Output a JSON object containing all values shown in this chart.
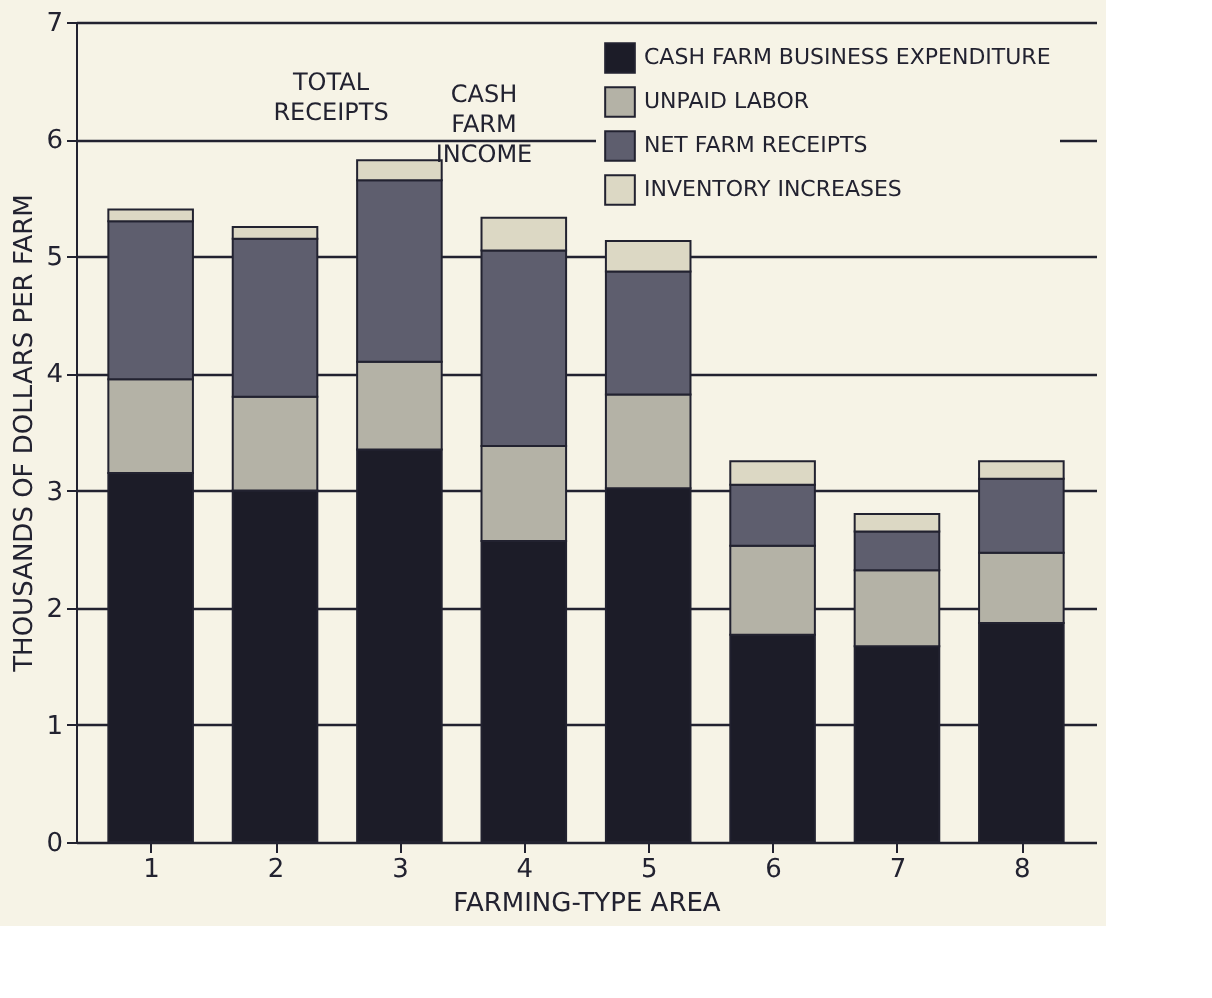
{
  "chart_data": {
    "type": "bar",
    "stacked": true,
    "xlabel": "FARMING-TYPE AREA",
    "ylabel": "THOUSANDS OF DOLLARS PER FARM",
    "categories": [
      "1",
      "2",
      "3",
      "4",
      "5",
      "6",
      "7",
      "8"
    ],
    "series": [
      {
        "name": "CASH FARM BUSINESS EXPENDITURE",
        "color": "#1c1c28",
        "values": [
          3.15,
          3.0,
          3.35,
          2.57,
          3.02,
          1.77,
          1.67,
          1.87
        ]
      },
      {
        "name": "UNPAID LABOR",
        "color": "#b4b2a6",
        "values": [
          0.8,
          0.8,
          0.75,
          0.81,
          0.8,
          0.76,
          0.65,
          0.6
        ]
      },
      {
        "name": "NET FARM RECEIPTS",
        "color": "#5e5e6e",
        "values": [
          1.35,
          1.35,
          1.55,
          1.67,
          1.05,
          0.52,
          0.33,
          0.63
        ]
      },
      {
        "name": "INVENTORY INCREASES",
        "color": "#dcd8c4",
        "values": [
          0.1,
          0.1,
          0.17,
          0.28,
          0.26,
          0.2,
          0.15,
          0.15
        ]
      }
    ],
    "annotations": [
      "TOTAL RECEIPTS",
      "CASH FARM INCOME"
    ],
    "ylim": [
      0,
      7
    ],
    "yticks": [
      0,
      1,
      2,
      3,
      4,
      5,
      6,
      7
    ],
    "grid": "y",
    "legend": "top right"
  }
}
